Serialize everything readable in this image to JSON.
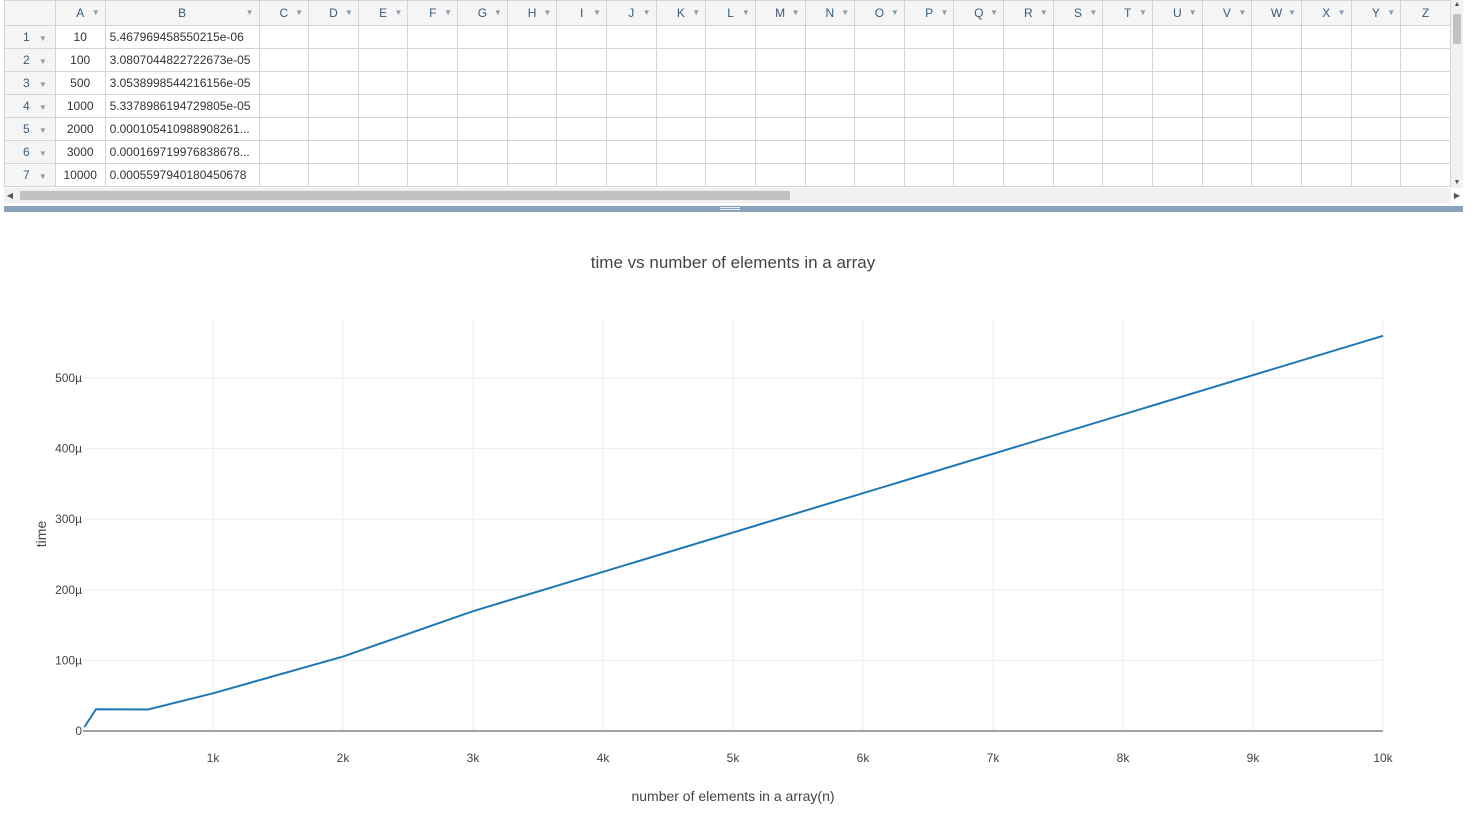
{
  "sheet": {
    "columns": [
      "A",
      "B",
      "C",
      "D",
      "E",
      "F",
      "G",
      "H",
      "I",
      "J",
      "K",
      "L",
      "M",
      "N",
      "O",
      "P",
      "Q",
      "R",
      "S",
      "T",
      "U",
      "V",
      "W",
      "X",
      "Y",
      "Z"
    ],
    "rows": [
      {
        "n": "1",
        "a": "10",
        "b": "5.467969458550215e-06"
      },
      {
        "n": "2",
        "a": "100",
        "b": "3.0807044822722673e-05"
      },
      {
        "n": "3",
        "a": "500",
        "b": "3.0538998544216156e-05"
      },
      {
        "n": "4",
        "a": "1000",
        "b": "5.3378986194729805e-05"
      },
      {
        "n": "5",
        "a": "2000",
        "b": "0.000105410988908261..."
      },
      {
        "n": "6",
        "a": "3000",
        "b": "0.000169719976838678..."
      },
      {
        "n": "7",
        "a": "10000",
        "b": "0.0005597940180450678"
      }
    ]
  },
  "chart_data": {
    "type": "line",
    "title": "time vs number of elements in a array",
    "xlabel": "number of elements in a array(n)",
    "ylabel": "time",
    "x": [
      10,
      100,
      500,
      1000,
      2000,
      3000,
      10000
    ],
    "series": [
      {
        "values": [
          5.468e-06,
          3.08e-05,
          3.05e-05,
          5.34e-05,
          0.0001054,
          0.0001697,
          0.0005598
        ]
      }
    ],
    "xlim": [
      0,
      10000
    ],
    "ylim": [
      0,
      0.000585
    ],
    "xticks": [
      1000,
      2000,
      3000,
      4000,
      5000,
      6000,
      7000,
      8000,
      9000,
      10000
    ],
    "xtick_labels": [
      "1k",
      "2k",
      "3k",
      "4k",
      "5k",
      "6k",
      "7k",
      "8k",
      "9k",
      "10k"
    ],
    "yticks": [
      0,
      0.0001,
      0.0002,
      0.0003,
      0.0004,
      0.0005
    ],
    "ytick_labels": [
      "0",
      "100µ",
      "200µ",
      "300µ",
      "400µ",
      "500µ"
    ],
    "grid": true,
    "line_color": "#1f77b4"
  }
}
